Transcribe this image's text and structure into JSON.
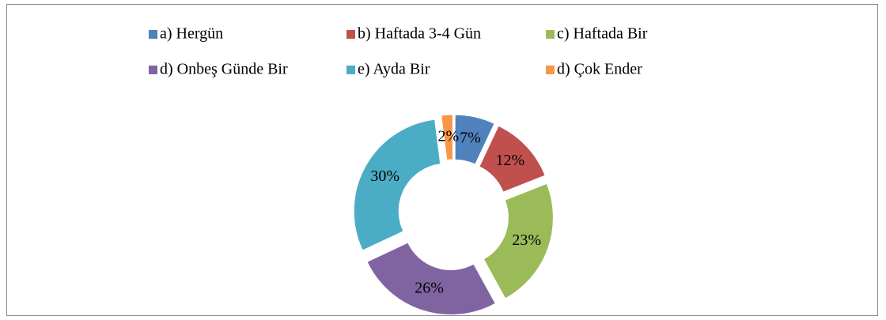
{
  "chart_data": {
    "type": "donut",
    "categories": [
      "a) Hergün",
      "b) Haftada 3-4 Gün",
      "c) Haftada Bir",
      "d) Onbeş Günde Bir",
      "e) Ayda Bir",
      "d) Çok Ender"
    ],
    "values": [
      7,
      12,
      23,
      26,
      30,
      2
    ],
    "value_labels": [
      "7%",
      "12%",
      "23%",
      "26%",
      "30%",
      "2%"
    ],
    "colors": [
      "#4f81bd",
      "#c0504d",
      "#9bbb59",
      "#8064a2",
      "#4bacc6",
      "#f79646"
    ],
    "legend": "top"
  }
}
